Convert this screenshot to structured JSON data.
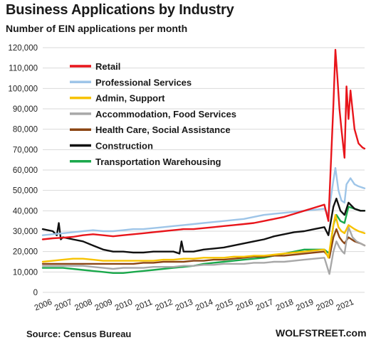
{
  "header": {
    "title": "Business Applications  by Industry",
    "subtitle": "Number of EIN applications per month"
  },
  "footer": {
    "source": "Source: Census Bureau",
    "brand": "WOLFSTREET.com"
  },
  "chart_data": {
    "type": "line",
    "title": "Business Applications  by Industry",
    "subtitle": "Number of EIN applications per month",
    "xlabel": "",
    "ylabel": "",
    "ylim": [
      0,
      120000
    ],
    "xlim": [
      2006,
      2022
    ],
    "grid": "horizontal",
    "legend_position": "top-left",
    "y_ticks": [
      "0",
      "10,000",
      "20,000",
      "30,000",
      "40,000",
      "50,000",
      "60,000",
      "70,000",
      "80,000",
      "90,000",
      "100,000",
      "110,000",
      "120,000"
    ],
    "x_ticks": [
      "2006",
      "2007",
      "2008",
      "2009",
      "2010",
      "2011",
      "2012",
      "2013",
      "2014",
      "2015",
      "2016",
      "2017",
      "2018",
      "2019",
      "2020",
      "2021"
    ],
    "series": [
      {
        "name": "Retail",
        "color": "#e8151b",
        "points": [
          [
            2006.0,
            26000
          ],
          [
            2006.5,
            26500
          ],
          [
            2007.0,
            26800
          ],
          [
            2007.5,
            27200
          ],
          [
            2008.0,
            28000
          ],
          [
            2008.5,
            28500
          ],
          [
            2009.0,
            28000
          ],
          [
            2009.5,
            27500
          ],
          [
            2010.0,
            28000
          ],
          [
            2010.5,
            28500
          ],
          [
            2011.0,
            29000
          ],
          [
            2011.5,
            29500
          ],
          [
            2012.0,
            30000
          ],
          [
            2012.5,
            30500
          ],
          [
            2013.0,
            31000
          ],
          [
            2013.5,
            31000
          ],
          [
            2014.0,
            31500
          ],
          [
            2014.5,
            32000
          ],
          [
            2015.0,
            32500
          ],
          [
            2015.5,
            33000
          ],
          [
            2016.0,
            33500
          ],
          [
            2016.5,
            34000
          ],
          [
            2017.0,
            35000
          ],
          [
            2017.5,
            36000
          ],
          [
            2018.0,
            37000
          ],
          [
            2018.5,
            38500
          ],
          [
            2019.0,
            40000
          ],
          [
            2019.5,
            41500
          ],
          [
            2020.0,
            43000
          ],
          [
            2020.2,
            35000
          ],
          [
            2020.45,
            92000
          ],
          [
            2020.55,
            119000
          ],
          [
            2020.65,
            105000
          ],
          [
            2020.75,
            90000
          ],
          [
            2020.85,
            80000
          ],
          [
            2021.0,
            66000
          ],
          [
            2021.1,
            101000
          ],
          [
            2021.2,
            85000
          ],
          [
            2021.3,
            99000
          ],
          [
            2021.5,
            80000
          ],
          [
            2021.7,
            73000
          ],
          [
            2021.9,
            71000
          ],
          [
            2022.0,
            70500
          ]
        ]
      },
      {
        "name": "Professional Services",
        "color": "#9ec5e8",
        "points": [
          [
            2006.0,
            28000
          ],
          [
            2006.5,
            28500
          ],
          [
            2007.0,
            29000
          ],
          [
            2007.5,
            29500
          ],
          [
            2008.0,
            30000
          ],
          [
            2008.5,
            30500
          ],
          [
            2009.0,
            30000
          ],
          [
            2009.5,
            30000
          ],
          [
            2010.0,
            30500
          ],
          [
            2010.5,
            31000
          ],
          [
            2011.0,
            31000
          ],
          [
            2011.5,
            31500
          ],
          [
            2012.0,
            32000
          ],
          [
            2012.5,
            32500
          ],
          [
            2013.0,
            33000
          ],
          [
            2013.5,
            33500
          ],
          [
            2014.0,
            34000
          ],
          [
            2014.5,
            34500
          ],
          [
            2015.0,
            35000
          ],
          [
            2015.5,
            35500
          ],
          [
            2016.0,
            36000
          ],
          [
            2016.5,
            37000
          ],
          [
            2017.0,
            38000
          ],
          [
            2017.5,
            38500
          ],
          [
            2018.0,
            39000
          ],
          [
            2018.5,
            39500
          ],
          [
            2019.0,
            40000
          ],
          [
            2019.5,
            40500
          ],
          [
            2020.0,
            41000
          ],
          [
            2020.2,
            38000
          ],
          [
            2020.45,
            55000
          ],
          [
            2020.55,
            61000
          ],
          [
            2020.7,
            50000
          ],
          [
            2020.85,
            45000
          ],
          [
            2021.0,
            44000
          ],
          [
            2021.1,
            53000
          ],
          [
            2021.3,
            56000
          ],
          [
            2021.5,
            53000
          ],
          [
            2021.7,
            52000
          ],
          [
            2022.0,
            51000
          ]
        ]
      },
      {
        "name": "Admin, Support",
        "color": "#f7c200",
        "points": [
          [
            2006.0,
            15000
          ],
          [
            2006.5,
            15500
          ],
          [
            2007.0,
            16000
          ],
          [
            2007.5,
            16500
          ],
          [
            2008.0,
            16500
          ],
          [
            2008.5,
            16000
          ],
          [
            2009.0,
            15500
          ],
          [
            2009.5,
            15500
          ],
          [
            2010.0,
            15500
          ],
          [
            2010.5,
            15500
          ],
          [
            2011.0,
            15500
          ],
          [
            2011.5,
            15500
          ],
          [
            2012.0,
            16000
          ],
          [
            2012.5,
            16000
          ],
          [
            2013.0,
            16500
          ],
          [
            2013.5,
            16500
          ],
          [
            2014.0,
            17000
          ],
          [
            2014.5,
            17000
          ],
          [
            2015.0,
            17000
          ],
          [
            2015.5,
            17500
          ],
          [
            2016.0,
            17500
          ],
          [
            2016.5,
            18000
          ],
          [
            2017.0,
            18000
          ],
          [
            2017.5,
            18500
          ],
          [
            2018.0,
            19000
          ],
          [
            2018.5,
            19500
          ],
          [
            2019.0,
            20000
          ],
          [
            2019.5,
            20500
          ],
          [
            2020.0,
            21000
          ],
          [
            2020.2,
            17000
          ],
          [
            2020.45,
            33000
          ],
          [
            2020.55,
            38000
          ],
          [
            2020.7,
            32000
          ],
          [
            2020.85,
            30000
          ],
          [
            2021.0,
            29000
          ],
          [
            2021.2,
            33000
          ],
          [
            2021.5,
            31000
          ],
          [
            2021.7,
            30000
          ],
          [
            2022.0,
            29000
          ]
        ]
      },
      {
        "name": "Accommodation, Food Services",
        "color": "#a8a8a8",
        "points": [
          [
            2006.0,
            13000
          ],
          [
            2006.5,
            13000
          ],
          [
            2007.0,
            13000
          ],
          [
            2007.5,
            13000
          ],
          [
            2008.0,
            13000
          ],
          [
            2008.5,
            12500
          ],
          [
            2009.0,
            12000
          ],
          [
            2009.5,
            11500
          ],
          [
            2010.0,
            12000
          ],
          [
            2010.5,
            12000
          ],
          [
            2011.0,
            12000
          ],
          [
            2011.5,
            12500
          ],
          [
            2012.0,
            12500
          ],
          [
            2012.5,
            12500
          ],
          [
            2013.0,
            13000
          ],
          [
            2013.5,
            13000
          ],
          [
            2014.0,
            13500
          ],
          [
            2014.5,
            13500
          ],
          [
            2015.0,
            14000
          ],
          [
            2015.5,
            14000
          ],
          [
            2016.0,
            14000
          ],
          [
            2016.5,
            14500
          ],
          [
            2017.0,
            14500
          ],
          [
            2017.5,
            15000
          ],
          [
            2018.0,
            15000
          ],
          [
            2018.5,
            15500
          ],
          [
            2019.0,
            16000
          ],
          [
            2019.5,
            16500
          ],
          [
            2020.0,
            17000
          ],
          [
            2020.25,
            9000
          ],
          [
            2020.45,
            20000
          ],
          [
            2020.6,
            25000
          ],
          [
            2020.75,
            22000
          ],
          [
            2020.9,
            20000
          ],
          [
            2021.0,
            19000
          ],
          [
            2021.2,
            32000
          ],
          [
            2021.4,
            27000
          ],
          [
            2021.6,
            25000
          ],
          [
            2021.8,
            24000
          ],
          [
            2022.0,
            23000
          ]
        ]
      },
      {
        "name": "Health Care, Social Assistance",
        "color": "#8b4513",
        "points": [
          [
            2006.0,
            14000
          ],
          [
            2006.5,
            14000
          ],
          [
            2007.0,
            14000
          ],
          [
            2007.5,
            14000
          ],
          [
            2008.0,
            14000
          ],
          [
            2008.5,
            14000
          ],
          [
            2009.0,
            14000
          ],
          [
            2009.5,
            14000
          ],
          [
            2010.0,
            14000
          ],
          [
            2010.5,
            14000
          ],
          [
            2011.0,
            14500
          ],
          [
            2011.5,
            14500
          ],
          [
            2012.0,
            15000
          ],
          [
            2012.5,
            15000
          ],
          [
            2013.0,
            15000
          ],
          [
            2013.5,
            15500
          ],
          [
            2014.0,
            15500
          ],
          [
            2014.5,
            16000
          ],
          [
            2015.0,
            16000
          ],
          [
            2015.5,
            16500
          ],
          [
            2016.0,
            17000
          ],
          [
            2016.5,
            17500
          ],
          [
            2017.0,
            17500
          ],
          [
            2017.5,
            18000
          ],
          [
            2018.0,
            18000
          ],
          [
            2018.5,
            18500
          ],
          [
            2019.0,
            19000
          ],
          [
            2019.5,
            19500
          ],
          [
            2020.0,
            20000
          ],
          [
            2020.25,
            17000
          ],
          [
            2020.45,
            27000
          ],
          [
            2020.6,
            31000
          ],
          [
            2020.75,
            27000
          ],
          [
            2020.9,
            25000
          ],
          [
            2021.0,
            24000
          ],
          [
            2021.2,
            27000
          ],
          [
            2021.5,
            25000
          ],
          [
            2021.8,
            24000
          ],
          [
            2022.0,
            23000
          ]
        ]
      },
      {
        "name": "Construction",
        "color": "#111111",
        "points": [
          [
            2006.0,
            31000
          ],
          [
            2006.5,
            30000
          ],
          [
            2006.7,
            28000
          ],
          [
            2006.8,
            34000
          ],
          [
            2006.9,
            26000
          ],
          [
            2007.0,
            27000
          ],
          [
            2007.5,
            26000
          ],
          [
            2008.0,
            25000
          ],
          [
            2008.5,
            23000
          ],
          [
            2009.0,
            21000
          ],
          [
            2009.5,
            20000
          ],
          [
            2010.0,
            20000
          ],
          [
            2010.5,
            19500
          ],
          [
            2011.0,
            19500
          ],
          [
            2011.5,
            20000
          ],
          [
            2012.0,
            20000
          ],
          [
            2012.5,
            20000
          ],
          [
            2012.8,
            19000
          ],
          [
            2012.9,
            25000
          ],
          [
            2013.0,
            20000
          ],
          [
            2013.5,
            20000
          ],
          [
            2014.0,
            21000
          ],
          [
            2014.5,
            21500
          ],
          [
            2015.0,
            22000
          ],
          [
            2015.5,
            23000
          ],
          [
            2016.0,
            24000
          ],
          [
            2016.5,
            25000
          ],
          [
            2017.0,
            26000
          ],
          [
            2017.5,
            27500
          ],
          [
            2018.0,
            28500
          ],
          [
            2018.5,
            29500
          ],
          [
            2019.0,
            30000
          ],
          [
            2019.5,
            31000
          ],
          [
            2020.0,
            32000
          ],
          [
            2020.2,
            28000
          ],
          [
            2020.45,
            42000
          ],
          [
            2020.6,
            46000
          ],
          [
            2020.8,
            40000
          ],
          [
            2021.0,
            38000
          ],
          [
            2021.2,
            44000
          ],
          [
            2021.5,
            41000
          ],
          [
            2021.8,
            40000
          ],
          [
            2022.0,
            40000
          ]
        ]
      },
      {
        "name": "Transportation Warehousing",
        "color": "#1aa84b",
        "points": [
          [
            2006.0,
            12000
          ],
          [
            2006.5,
            12000
          ],
          [
            2007.0,
            12000
          ],
          [
            2007.5,
            11500
          ],
          [
            2008.0,
            11000
          ],
          [
            2008.5,
            10500
          ],
          [
            2009.0,
            10000
          ],
          [
            2009.5,
            9500
          ],
          [
            2010.0,
            9500
          ],
          [
            2010.5,
            10000
          ],
          [
            2011.0,
            10500
          ],
          [
            2011.5,
            11000
          ],
          [
            2012.0,
            11500
          ],
          [
            2012.5,
            12000
          ],
          [
            2013.0,
            12500
          ],
          [
            2013.5,
            13000
          ],
          [
            2014.0,
            14000
          ],
          [
            2014.5,
            14500
          ],
          [
            2015.0,
            15000
          ],
          [
            2015.5,
            15500
          ],
          [
            2016.0,
            16000
          ],
          [
            2016.5,
            16500
          ],
          [
            2017.0,
            17000
          ],
          [
            2017.5,
            18000
          ],
          [
            2018.0,
            19000
          ],
          [
            2018.5,
            20000
          ],
          [
            2019.0,
            21000
          ],
          [
            2019.5,
            21000
          ],
          [
            2020.0,
            21000
          ],
          [
            2020.25,
            19000
          ],
          [
            2020.45,
            33000
          ],
          [
            2020.6,
            38000
          ],
          [
            2020.8,
            35000
          ],
          [
            2021.0,
            34000
          ],
          [
            2021.2,
            42000
          ],
          [
            2021.5,
            41000
          ],
          [
            2021.8,
            40000
          ],
          [
            2022.0,
            40000
          ]
        ]
      }
    ]
  }
}
